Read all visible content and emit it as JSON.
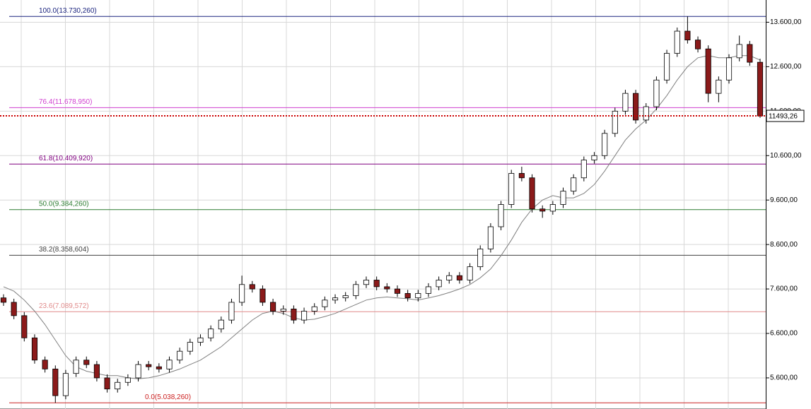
{
  "chart_data": {
    "type": "candlestick",
    "ylim": [
      4900,
      14100
    ],
    "yticks": [
      {
        "value": 5600,
        "label": "5.600,00"
      },
      {
        "value": 6600,
        "label": "6.600,00"
      },
      {
        "value": 7600,
        "label": "7.600,00"
      },
      {
        "value": 8600,
        "label": "8.600,00"
      },
      {
        "value": 9600,
        "label": "9.600,00"
      },
      {
        "value": 10600,
        "label": "10.600,00"
      },
      {
        "value": 11600,
        "label": "11.600,00"
      },
      {
        "value": 12600,
        "label": "12.600,00"
      },
      {
        "value": 13600,
        "label": "13.600,00"
      }
    ],
    "grid": true,
    "colors": {
      "up": "#ffffff",
      "down": "#8b1a1a",
      "wick": "#000000"
    },
    "open": [
      7400,
      7300,
      7000,
      6500,
      6000,
      5800,
      5200,
      5700,
      6000,
      5900,
      5600,
      5350,
      5500,
      5600,
      5900,
      5850,
      5800,
      6000,
      6200,
      6400,
      6500,
      6700,
      6900,
      7300,
      7700,
      7600,
      7300,
      7100,
      7150,
      6900,
      7100,
      7200,
      7350,
      7400,
      7450,
      7700,
      7800,
      7650,
      7600,
      7500,
      7400,
      7500,
      7650,
      7800,
      7900,
      7800,
      8100,
      8500,
      9000,
      9500,
      10200,
      10100,
      9400,
      9350,
      9500,
      9800,
      10100,
      10500,
      10600,
      11100,
      11600,
      12000,
      11400,
      11700,
      12300,
      12900,
      13400,
      13200,
      13000,
      12000,
      12300,
      12800,
      13100,
      12700
    ],
    "high": [
      7480,
      7380,
      7080,
      6580,
      6080,
      5880,
      5780,
      6080,
      6080,
      5980,
      5680,
      5580,
      5680,
      5980,
      5980,
      5930,
      6080,
      6280,
      6480,
      6580,
      6780,
      6980,
      7380,
      7900,
      7780,
      7680,
      7380,
      7230,
      7230,
      7180,
      7280,
      7430,
      7480,
      7530,
      7780,
      7880,
      7880,
      7730,
      7680,
      7580,
      7580,
      7730,
      7880,
      7980,
      7980,
      8180,
      8580,
      9080,
      9580,
      10280,
      10350,
      10180,
      9480,
      9580,
      9880,
      10180,
      10580,
      10680,
      11180,
      11680,
      12080,
      12080,
      11780,
      12380,
      12980,
      13480,
      13730,
      13280,
      13080,
      12380,
      12880,
      13300,
      13180,
      12780
    ],
    "low": [
      7220,
      6920,
      6420,
      5920,
      5720,
      5038,
      5120,
      5620,
      5820,
      5520,
      5270,
      5270,
      5420,
      5520,
      5770,
      5720,
      5720,
      5920,
      6120,
      6320,
      6420,
      6620,
      6820,
      7220,
      7520,
      7220,
      7020,
      7020,
      6820,
      6820,
      7020,
      7120,
      7270,
      7320,
      7370,
      7620,
      7570,
      7520,
      7420,
      7320,
      7320,
      7420,
      7570,
      7720,
      7720,
      7720,
      8020,
      8420,
      8920,
      9420,
      10020,
      9320,
      9200,
      9270,
      9420,
      9720,
      10020,
      10420,
      10520,
      11020,
      11520,
      11320,
      11320,
      11620,
      12220,
      12820,
      13120,
      12920,
      11800,
      11800,
      12220,
      12720,
      12620,
      11450
    ],
    "close": [
      7300,
      7000,
      6500,
      6000,
      5800,
      5200,
      5700,
      6000,
      5900,
      5600,
      5350,
      5500,
      5600,
      5900,
      5850,
      5800,
      6000,
      6200,
      6400,
      6500,
      6700,
      6900,
      7300,
      7700,
      7600,
      7300,
      7100,
      7150,
      6900,
      7100,
      7200,
      7350,
      7400,
      7450,
      7700,
      7800,
      7650,
      7600,
      7500,
      7400,
      7500,
      7650,
      7800,
      7900,
      7800,
      8100,
      8500,
      9000,
      9500,
      10200,
      10100,
      9400,
      9350,
      9500,
      9800,
      10100,
      10500,
      10600,
      11100,
      11600,
      12000,
      11400,
      11700,
      12300,
      12900,
      13400,
      13200,
      13000,
      12000,
      12300,
      12800,
      13100,
      12700,
      11493.26
    ],
    "ma": {
      "color": "#808080",
      "values": [
        7650,
        7550,
        7350,
        7100,
        6800,
        6450,
        6100,
        5850,
        5750,
        5700,
        5650,
        5650,
        5600,
        5580,
        5600,
        5650,
        5720,
        5800,
        5900,
        6000,
        6150,
        6300,
        6500,
        6700,
        6900,
        7050,
        7100,
        7050,
        6950,
        6900,
        6920,
        6980,
        7050,
        7150,
        7250,
        7350,
        7400,
        7420,
        7400,
        7380,
        7350,
        7400,
        7450,
        7520,
        7600,
        7700,
        7850,
        8050,
        8350,
        8700,
        9100,
        9400,
        9600,
        9700,
        9650,
        9650,
        9750,
        9950,
        10250,
        10600,
        10950,
        11200,
        11400,
        11650,
        11950,
        12300,
        12600,
        12800,
        12850,
        12800,
        12800,
        12850,
        12850,
        12750
      ]
    },
    "fib_levels": [
      {
        "label": "100.0(13.730,260)",
        "value": 13730.26,
        "color": "#1a237e"
      },
      {
        "label": "76.4(11.678,950)",
        "value": 11678.95,
        "color": "#d040d0"
      },
      {
        "label": "61.8(10.409,920)",
        "value": 10409.92,
        "color": "#800080"
      },
      {
        "label": "50.0(9.384,260)",
        "value": 9384.26,
        "color": "#2e7d32"
      },
      {
        "label": "38.2(8.358,604)",
        "value": 8358.604,
        "color": "#404040"
      },
      {
        "label": "23.6(7.089,572)",
        "value": 7089.572,
        "color": "#e08a8a"
      },
      {
        "label": "0.0(5.038,260)",
        "value": 5038.26,
        "color": "#cc2020"
      }
    ],
    "trend_color": "#ff6a5a",
    "current_price": {
      "value": 11493.26,
      "label": "11493,26",
      "color": "#cc0000"
    }
  }
}
